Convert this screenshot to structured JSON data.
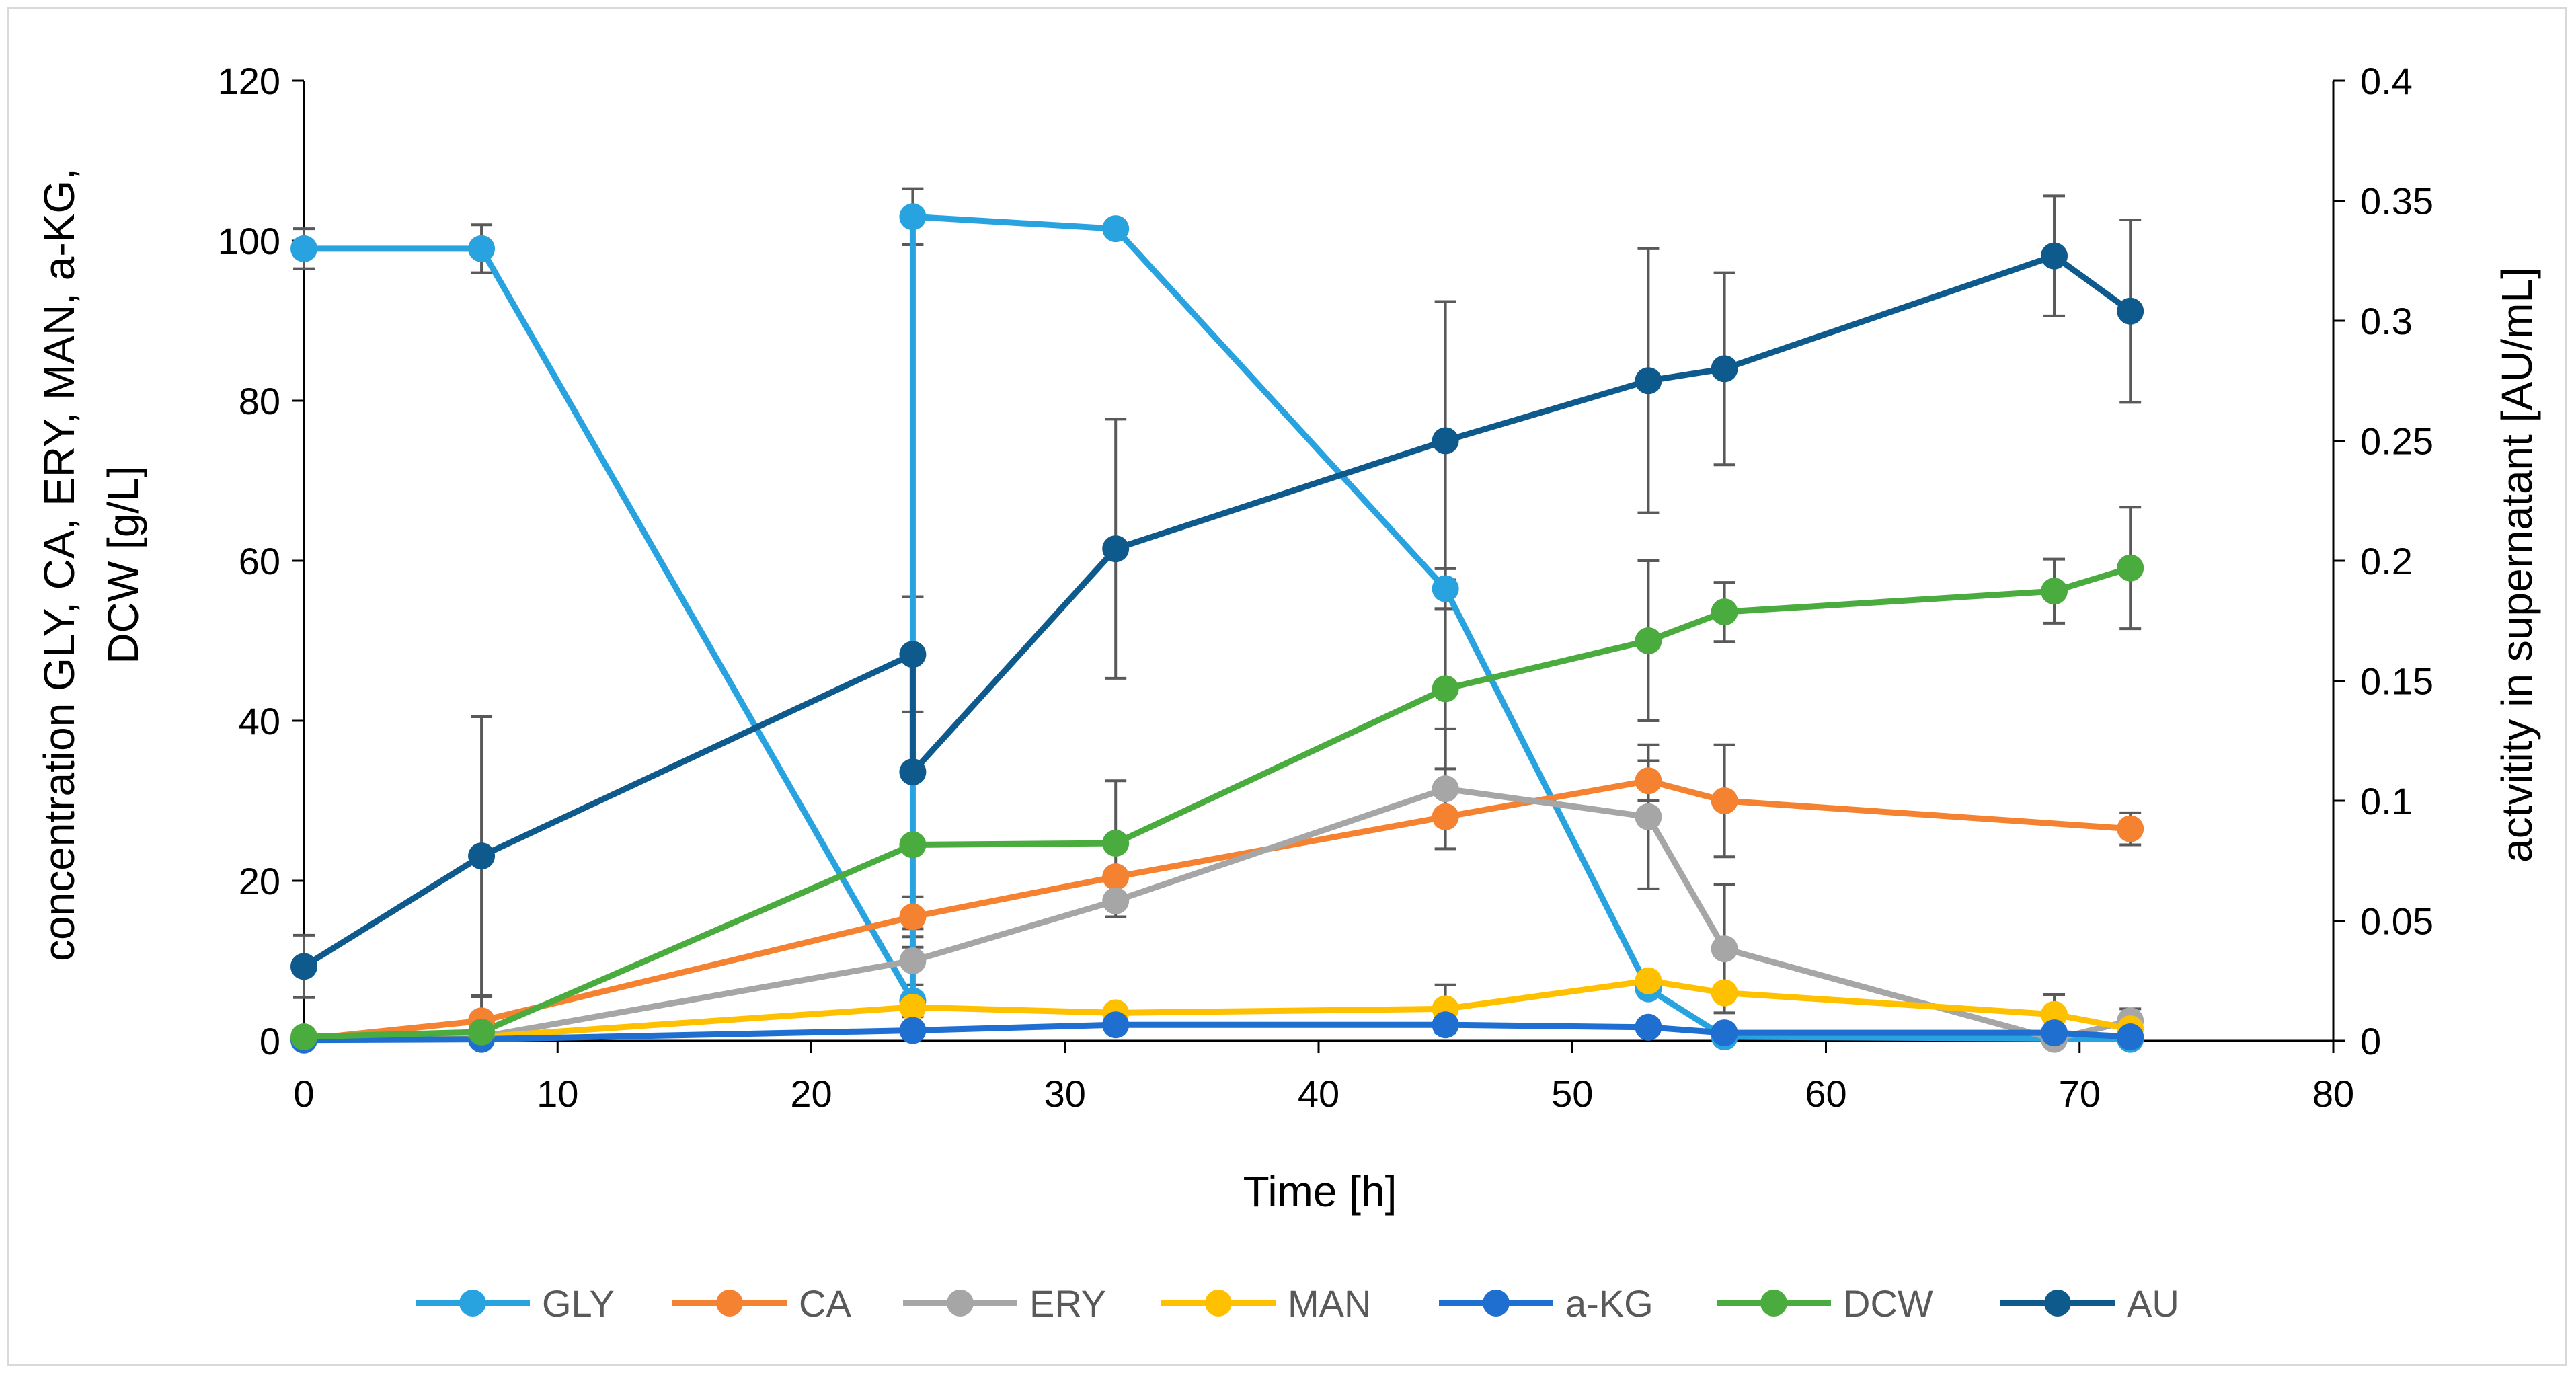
{
  "chart_data": {
    "type": "line",
    "x_axis": {
      "label": "Time [h]",
      "range": [
        0,
        80
      ],
      "ticks": [
        0,
        10,
        20,
        30,
        40,
        50,
        60,
        70,
        80
      ]
    },
    "y_axis_left": {
      "label_line1": "concentration GLY, CA, ERY, MAN, a-KG,",
      "label_line2": "DCW [g/L]",
      "range": [
        0,
        120
      ],
      "ticks": [
        0,
        20,
        40,
        60,
        80,
        100,
        120
      ]
    },
    "y_axis_right": {
      "label": "actvitity in supernatant [AU/mL]",
      "range": [
        0,
        0.4
      ],
      "ticks": [
        "0",
        "0.05",
        "0.1",
        "0.15",
        "0.2",
        "0.25",
        "0.3",
        "0.35",
        "0.4"
      ]
    },
    "grid": false,
    "legend_position": "bottom",
    "series": [
      {
        "name": "GLY",
        "axis": "left",
        "color": "#29a3e0",
        "x": [
          0,
          7,
          24,
          24,
          32,
          45,
          53,
          56,
          69,
          72
        ],
        "y": [
          99,
          99,
          5,
          103,
          101.5,
          56.5,
          6.5,
          0.5,
          0.3,
          0.2
        ],
        "err": [
          2.5,
          3,
          2,
          3.5,
          0,
          2.5,
          0,
          0,
          0,
          0
        ]
      },
      {
        "name": "CA",
        "axis": "left",
        "color": "#f58231",
        "x": [
          0,
          7,
          24,
          32,
          45,
          53,
          56,
          72
        ],
        "y": [
          0.2,
          2.5,
          15.5,
          20.5,
          28,
          32.5,
          30,
          26.5
        ],
        "err": [
          0,
          3,
          2.5,
          0,
          0,
          2.5,
          7,
          2
        ]
      },
      {
        "name": "ERY",
        "axis": "left",
        "color": "#a6a6a6",
        "x": [
          0,
          7,
          24,
          32,
          45,
          53,
          56,
          69,
          72
        ],
        "y": [
          0.2,
          0.5,
          10,
          17.5,
          31.5,
          28,
          11.5,
          0.2,
          2.5
        ],
        "err": [
          0,
          0,
          4,
          2,
          7.5,
          9,
          8,
          0,
          1.5
        ]
      },
      {
        "name": "MAN",
        "axis": "left",
        "color": "#ffc000",
        "x": [
          0,
          7,
          24,
          32,
          45,
          53,
          56,
          69,
          72
        ],
        "y": [
          0.2,
          0.5,
          4.2,
          3.5,
          4,
          7.5,
          6,
          3.3,
          1.5
        ],
        "err": [
          0,
          0,
          0,
          0,
          3,
          0,
          0,
          2.5,
          0
        ]
      },
      {
        "name": "a-KG",
        "axis": "left",
        "color": "#1f6fd1",
        "x": [
          0,
          7,
          24,
          32,
          45,
          53,
          56,
          69,
          72
        ],
        "y": [
          0.1,
          0.2,
          1.3,
          2,
          2,
          1.7,
          1,
          1,
          0.5
        ],
        "err": [
          0,
          0,
          0,
          0,
          0,
          0,
          0,
          0,
          0
        ]
      },
      {
        "name": "DCW",
        "axis": "left",
        "color": "#4aac3e",
        "x": [
          0,
          7,
          24,
          32,
          45,
          53,
          56,
          69,
          72
        ],
        "y": [
          0.5,
          1.1,
          24.5,
          24.7,
          44,
          50,
          53.6,
          56.2,
          59.1
        ],
        "err": [
          0,
          0,
          0,
          7.8,
          10,
          10,
          3.7,
          4,
          7.6
        ]
      },
      {
        "name": "AU",
        "axis": "right",
        "color": "#0f5a8c",
        "x": [
          0,
          7,
          24,
          24,
          32,
          45,
          53,
          56,
          69,
          72
        ],
        "y": [
          0.031,
          0.077,
          0.161,
          0.112,
          0.205,
          0.25,
          0.275,
          0.28,
          0.327,
          0.304
        ],
        "err": [
          0.013,
          0.058,
          0.024,
          0.073,
          0.054,
          0.058,
          0.055,
          0.04,
          0.025,
          0.038
        ]
      }
    ]
  }
}
